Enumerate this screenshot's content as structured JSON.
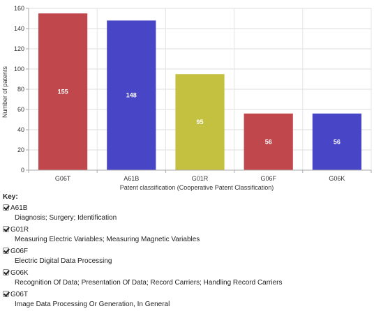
{
  "chart_data": {
    "type": "bar",
    "categories": [
      "G06T",
      "A61B",
      "G01R",
      "G06F",
      "G06K"
    ],
    "values": [
      155,
      148,
      95,
      56,
      56
    ],
    "data_labels": [
      "155",
      "148",
      "95",
      "56",
      "56"
    ],
    "colors": [
      "#c0474b",
      "#4846c6",
      "#c4c141",
      "#c0474b",
      "#4846c6"
    ],
    "ylim": [
      0,
      160
    ],
    "yticks": [
      0,
      20,
      40,
      60,
      80,
      100,
      120,
      140,
      160
    ],
    "xlabel": "Patent classification (Cooperative Patent Classification)",
    "ylabel": "Number of patents",
    "grid": true
  },
  "key": {
    "title": "Key:",
    "items": [
      {
        "code": "A61B",
        "description": "Diagnosis; Surgery; Identification",
        "checked": true
      },
      {
        "code": "G01R",
        "description": "Measuring Electric Variables; Measuring Magnetic Variables",
        "checked": true
      },
      {
        "code": "G06F",
        "description": "Electric Digital Data Processing",
        "checked": true
      },
      {
        "code": "G06K",
        "description": "Recognition Of Data; Presentation Of Data; Record Carriers; Handling Record Carriers",
        "checked": true
      },
      {
        "code": "G06T",
        "description": "Image Data Processing Or Generation, In General",
        "checked": true
      }
    ]
  }
}
